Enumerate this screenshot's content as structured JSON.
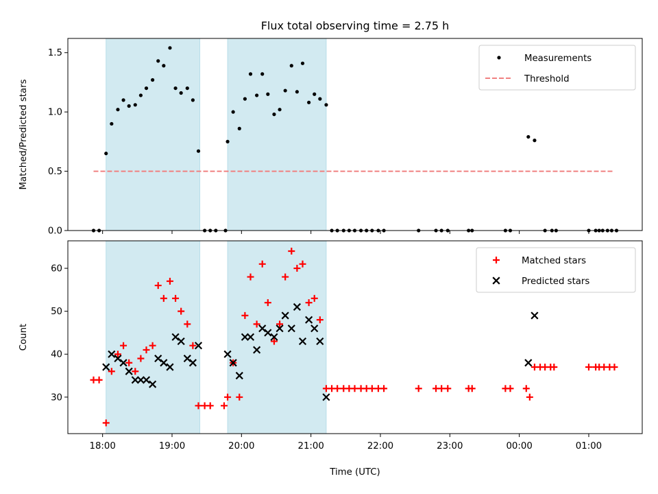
{
  "chart_data": [
    {
      "type": "scatter",
      "title": "Flux total observing time = 2.75 h",
      "ylabel": "Matched/Predicted stars",
      "xlabel": "",
      "ylim": [
        0,
        1.62
      ],
      "xlim": [
        17.5,
        25.77
      ],
      "yticks": [
        {
          "v": 0.0,
          "label": "0.0"
        },
        {
          "v": 0.5,
          "label": "0.5"
        },
        {
          "v": 1.0,
          "label": "1.0"
        },
        {
          "v": 1.5,
          "label": "1.5"
        }
      ],
      "grid": false,
      "legend_position": "top-right",
      "shaded_intervals": [
        [
          18.05,
          19.4
        ],
        [
          19.8,
          21.22
        ]
      ],
      "shade_color": "#add8e6",
      "series": [
        {
          "name": "Measurements",
          "marker": "dot",
          "color": "#000000",
          "points": [
            [
              17.87,
              0
            ],
            [
              17.95,
              0
            ],
            [
              18.05,
              0.65
            ],
            [
              18.13,
              0.9
            ],
            [
              18.22,
              1.02
            ],
            [
              18.3,
              1.1
            ],
            [
              18.38,
              1.05
            ],
            [
              18.47,
              1.06
            ],
            [
              18.55,
              1.14
            ],
            [
              18.63,
              1.2
            ],
            [
              18.72,
              1.27
            ],
            [
              18.8,
              1.43
            ],
            [
              18.88,
              1.39
            ],
            [
              18.97,
              1.54
            ],
            [
              19.05,
              1.2
            ],
            [
              19.13,
              1.16
            ],
            [
              19.22,
              1.2
            ],
            [
              19.3,
              1.1
            ],
            [
              19.38,
              0.67
            ],
            [
              19.47,
              0
            ],
            [
              19.55,
              0
            ],
            [
              19.63,
              0
            ],
            [
              19.77,
              0
            ],
            [
              19.8,
              0.75
            ],
            [
              19.88,
              1.0
            ],
            [
              19.97,
              0.86
            ],
            [
              20.05,
              1.11
            ],
            [
              20.13,
              1.32
            ],
            [
              20.22,
              1.14
            ],
            [
              20.3,
              1.32
            ],
            [
              20.38,
              1.15
            ],
            [
              20.47,
              0.98
            ],
            [
              20.55,
              1.02
            ],
            [
              20.63,
              1.18
            ],
            [
              20.72,
              1.39
            ],
            [
              20.8,
              1.17
            ],
            [
              20.88,
              1.41
            ],
            [
              20.97,
              1.08
            ],
            [
              21.05,
              1.15
            ],
            [
              21.13,
              1.11
            ],
            [
              21.22,
              1.06
            ],
            [
              21.3,
              0
            ],
            [
              21.38,
              0
            ],
            [
              21.47,
              0
            ],
            [
              21.55,
              0
            ],
            [
              21.63,
              0
            ],
            [
              21.72,
              0
            ],
            [
              21.8,
              0
            ],
            [
              21.88,
              0
            ],
            [
              21.97,
              0
            ],
            [
              22.05,
              0
            ],
            [
              22.55,
              0
            ],
            [
              22.8,
              0
            ],
            [
              22.88,
              0
            ],
            [
              22.97,
              0
            ],
            [
              23.27,
              0
            ],
            [
              23.32,
              0
            ],
            [
              23.8,
              0
            ],
            [
              23.87,
              0
            ],
            [
              24.13,
              0.79
            ],
            [
              24.22,
              0.76
            ],
            [
              24.37,
              0
            ],
            [
              24.47,
              0
            ],
            [
              24.53,
              0
            ],
            [
              25.0,
              0
            ],
            [
              25.1,
              0
            ],
            [
              25.15,
              0
            ],
            [
              25.2,
              0
            ],
            [
              25.27,
              0
            ],
            [
              25.33,
              0
            ],
            [
              25.4,
              0
            ]
          ]
        },
        {
          "name": "Threshold",
          "marker": "dashed-line",
          "color": "#f08080",
          "x": [
            17.87,
            25.35
          ],
          "y": [
            0.5,
            0.5
          ]
        }
      ]
    },
    {
      "type": "scatter",
      "title": "",
      "ylabel": "Count",
      "xlabel": "Time (UTC)",
      "ylim": [
        21.5,
        66.4
      ],
      "xlim": [
        17.5,
        25.77
      ],
      "yticks": [
        {
          "v": 30,
          "label": "30"
        },
        {
          "v": 40,
          "label": "40"
        },
        {
          "v": 50,
          "label": "50"
        },
        {
          "v": 60,
          "label": "60"
        }
      ],
      "xticks": [
        {
          "v": 18,
          "label": "18:00"
        },
        {
          "v": 19,
          "label": "19:00"
        },
        {
          "v": 20,
          "label": "20:00"
        },
        {
          "v": 21,
          "label": "21:00"
        },
        {
          "v": 22,
          "label": "22:00"
        },
        {
          "v": 23,
          "label": "23:00"
        },
        {
          "v": 24,
          "label": "00:00"
        },
        {
          "v": 25,
          "label": "01:00"
        }
      ],
      "grid": false,
      "legend_position": "top-right",
      "shaded_intervals": [
        [
          18.05,
          19.4
        ],
        [
          19.8,
          21.22
        ]
      ],
      "shade_color": "#add8e6",
      "series": [
        {
          "name": "Matched stars",
          "marker": "plus",
          "color": "#ff0000",
          "points": [
            [
              17.87,
              34
            ],
            [
              17.95,
              34
            ],
            [
              18.05,
              24
            ],
            [
              18.13,
              36
            ],
            [
              18.22,
              40
            ],
            [
              18.3,
              42
            ],
            [
              18.38,
              38
            ],
            [
              18.47,
              36
            ],
            [
              18.55,
              39
            ],
            [
              18.63,
              41
            ],
            [
              18.72,
              42
            ],
            [
              18.8,
              56
            ],
            [
              18.88,
              53
            ],
            [
              18.97,
              57
            ],
            [
              19.05,
              53
            ],
            [
              19.13,
              50
            ],
            [
              19.22,
              47
            ],
            [
              19.3,
              42
            ],
            [
              19.38,
              28
            ],
            [
              19.47,
              28
            ],
            [
              19.55,
              28
            ],
            [
              19.75,
              28
            ],
            [
              19.8,
              30
            ],
            [
              19.88,
              38
            ],
            [
              19.97,
              30
            ],
            [
              20.05,
              49
            ],
            [
              20.13,
              58
            ],
            [
              20.22,
              47
            ],
            [
              20.3,
              61
            ],
            [
              20.38,
              52
            ],
            [
              20.47,
              43
            ],
            [
              20.55,
              47
            ],
            [
              20.63,
              58
            ],
            [
              20.72,
              64
            ],
            [
              20.8,
              60
            ],
            [
              20.88,
              61
            ],
            [
              20.97,
              52
            ],
            [
              21.05,
              53
            ],
            [
              21.13,
              48
            ],
            [
              21.22,
              32
            ],
            [
              21.3,
              32
            ],
            [
              21.38,
              32
            ],
            [
              21.47,
              32
            ],
            [
              21.55,
              32
            ],
            [
              21.63,
              32
            ],
            [
              21.72,
              32
            ],
            [
              21.8,
              32
            ],
            [
              21.88,
              32
            ],
            [
              21.97,
              32
            ],
            [
              22.05,
              32
            ],
            [
              22.55,
              32
            ],
            [
              22.8,
              32
            ],
            [
              22.88,
              32
            ],
            [
              22.97,
              32
            ],
            [
              23.27,
              32
            ],
            [
              23.32,
              32
            ],
            [
              23.8,
              32
            ],
            [
              23.87,
              32
            ],
            [
              24.1,
              32
            ],
            [
              24.15,
              30
            ],
            [
              24.22,
              37
            ],
            [
              24.3,
              37
            ],
            [
              24.37,
              37
            ],
            [
              24.45,
              37
            ],
            [
              24.5,
              37
            ],
            [
              25.0,
              37
            ],
            [
              25.1,
              37
            ],
            [
              25.15,
              37
            ],
            [
              25.22,
              37
            ],
            [
              25.3,
              37
            ],
            [
              25.37,
              37
            ]
          ]
        },
        {
          "name": "Predicted stars",
          "marker": "x",
          "color": "#000000",
          "points": [
            [
              18.05,
              37
            ],
            [
              18.13,
              40
            ],
            [
              18.22,
              39
            ],
            [
              18.3,
              38
            ],
            [
              18.38,
              36
            ],
            [
              18.47,
              34
            ],
            [
              18.55,
              34
            ],
            [
              18.63,
              34
            ],
            [
              18.72,
              33
            ],
            [
              18.8,
              39
            ],
            [
              18.88,
              38
            ],
            [
              18.97,
              37
            ],
            [
              19.05,
              44
            ],
            [
              19.13,
              43
            ],
            [
              19.22,
              39
            ],
            [
              19.3,
              38
            ],
            [
              19.38,
              42
            ],
            [
              19.8,
              40
            ],
            [
              19.88,
              38
            ],
            [
              19.97,
              35
            ],
            [
              20.05,
              44
            ],
            [
              20.13,
              44
            ],
            [
              20.22,
              41
            ],
            [
              20.3,
              46
            ],
            [
              20.38,
              45
            ],
            [
              20.47,
              44
            ],
            [
              20.55,
              46
            ],
            [
              20.63,
              49
            ],
            [
              20.72,
              46
            ],
            [
              20.8,
              51
            ],
            [
              20.88,
              43
            ],
            [
              20.97,
              48
            ],
            [
              21.05,
              46
            ],
            [
              21.13,
              43
            ],
            [
              21.22,
              30
            ],
            [
              24.13,
              38
            ],
            [
              24.22,
              49
            ]
          ]
        }
      ]
    }
  ]
}
